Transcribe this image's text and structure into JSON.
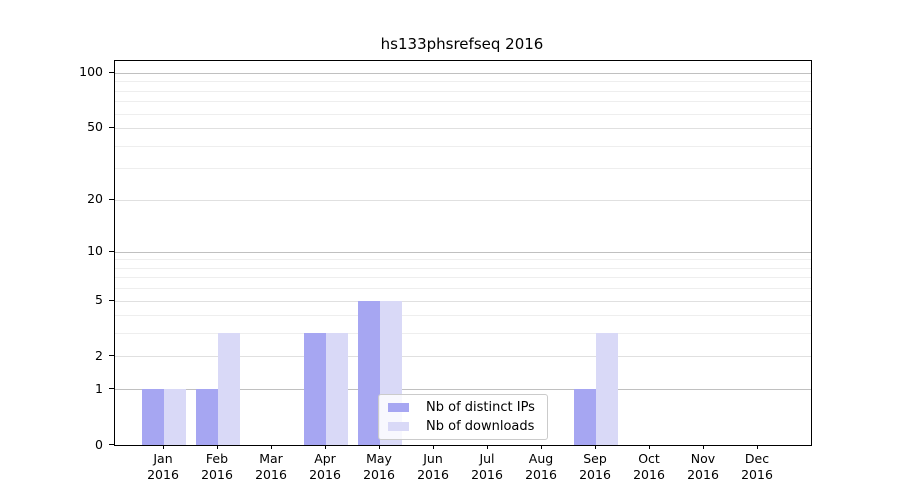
{
  "chart_data": {
    "type": "bar",
    "title": "hs133phsrefseq 2016",
    "categories": [
      "Jan 2016",
      "Feb 2016",
      "Mar 2016",
      "Apr 2016",
      "May 2016",
      "Jun 2016",
      "Jul 2016",
      "Aug 2016",
      "Sep 2016",
      "Oct 2016",
      "Nov 2016",
      "Dec 2016"
    ],
    "series": [
      {
        "name": "Nb of distinct IPs",
        "color": "#a6a6f2",
        "values": [
          1,
          1,
          0,
          3,
          5,
          0,
          0,
          0,
          1,
          0,
          0,
          0
        ]
      },
      {
        "name": "Nb of downloads",
        "color": "#d9d9f7",
        "values": [
          1,
          3,
          0,
          3,
          5,
          0,
          0,
          0,
          3,
          0,
          0,
          0
        ]
      }
    ],
    "xlabel": "",
    "ylabel": "",
    "yscale": "log1p",
    "ylim": [
      0,
      116
    ],
    "yticks": [
      0,
      1,
      2,
      5,
      10,
      20,
      50,
      100
    ],
    "grid": {
      "on": true,
      "decade_lines": [
        1,
        10,
        100
      ],
      "labeled_lines": [
        2,
        5,
        20,
        50
      ],
      "minor_lines": [
        3,
        4,
        6,
        7,
        8,
        9,
        30,
        40,
        60,
        70,
        80,
        90
      ],
      "decade_color": "#c0c0c0",
      "labeled_color": "#e0e0e0",
      "minor_color": "#eeeeee"
    },
    "legend_position": "lower center"
  }
}
